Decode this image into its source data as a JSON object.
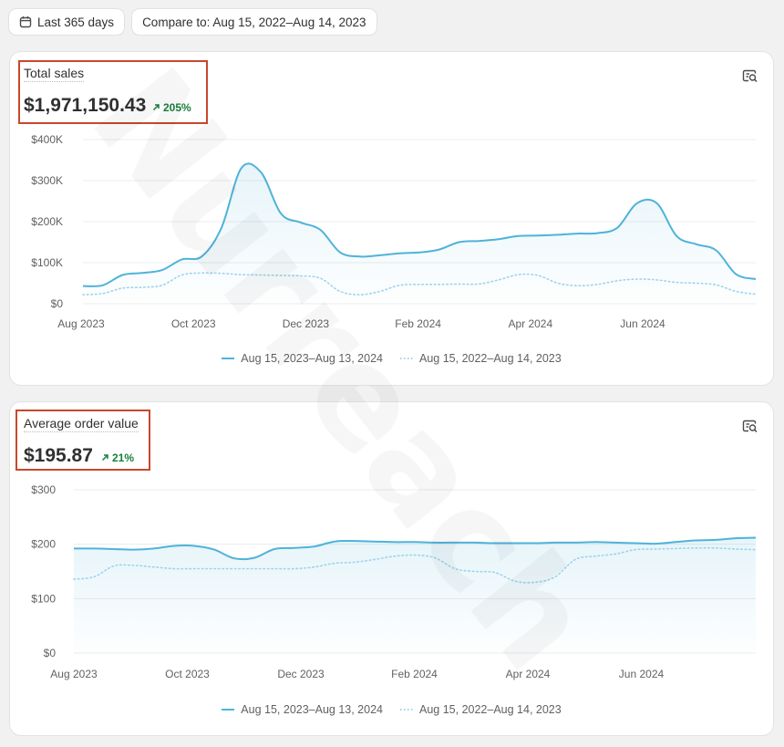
{
  "toolbar": {
    "date_range_label": "Last 365 days",
    "compare_label": "Compare to: Aug 15, 2022–Aug 14, 2023"
  },
  "watermark": "Nurreach",
  "colors": {
    "current": "#4fb3d9",
    "previous": "#9fd3ea",
    "positive": "#1a7f3c",
    "highlight": "#c8472c"
  },
  "chart_data": [
    {
      "type": "line",
      "title": "Total sales",
      "value": "$1,971,150.43",
      "change": "205%",
      "ylim": [
        0,
        400000
      ],
      "yticks": [
        0,
        100000,
        200000,
        300000,
        400000
      ],
      "yticklabels": [
        "$0",
        "$100K",
        "$200K",
        "$300K",
        "$400K"
      ],
      "xticklabels": [
        "Aug 2023",
        "Oct 2023",
        "Dec 2023",
        "Feb 2024",
        "Apr 2024",
        "Jun 2024"
      ],
      "grid": true,
      "legend_position": "bottom-center",
      "series": [
        {
          "name": "Aug 15, 2023–Aug 13, 2024",
          "style": "solid",
          "values": [
            43000,
            45000,
            70000,
            75000,
            82000,
            108000,
            115000,
            185000,
            330000,
            320000,
            220000,
            198000,
            180000,
            125000,
            115000,
            118000,
            123000,
            125000,
            132000,
            150000,
            153000,
            157000,
            165000,
            166000,
            168000,
            171000,
            172000,
            185000,
            245000,
            245000,
            165000,
            145000,
            130000,
            72000,
            60000
          ]
        },
        {
          "name": "Aug 15, 2022–Aug 14, 2023",
          "style": "dotted",
          "values": [
            22000,
            25000,
            38000,
            40000,
            45000,
            70000,
            75000,
            74000,
            71000,
            70000,
            69000,
            68000,
            62000,
            30000,
            22000,
            30000,
            45000,
            47000,
            47000,
            48000,
            48000,
            58000,
            71000,
            69000,
            50000,
            44000,
            47000,
            56000,
            60000,
            58000,
            52000,
            50000,
            46000,
            30000,
            23000
          ]
        }
      ]
    },
    {
      "type": "line",
      "title": "Average order value",
      "value": "$195.87",
      "change": "21%",
      "ylim": [
        0,
        300
      ],
      "yticks": [
        0,
        100,
        200,
        300
      ],
      "yticklabels": [
        "$0",
        "$100",
        "$200",
        "$300"
      ],
      "xticklabels": [
        "Aug 2023",
        "Oct 2023",
        "Dec 2023",
        "Feb 2024",
        "Apr 2024",
        "Jun 2024"
      ],
      "grid": true,
      "legend_position": "bottom-center",
      "series": [
        {
          "name": "Aug 15, 2023–Aug 13, 2024",
          "style": "solid",
          "values": [
            192,
            192,
            191,
            190,
            192,
            197,
            197,
            190,
            174,
            175,
            191,
            193,
            196,
            205,
            206,
            205,
            204,
            204,
            203,
            203,
            203,
            202,
            202,
            202,
            203,
            203,
            204,
            203,
            202,
            201,
            204,
            207,
            208,
            211,
            212
          ]
        },
        {
          "name": "Aug 15, 2022–Aug 14, 2023",
          "style": "dotted",
          "values": [
            136,
            140,
            160,
            161,
            158,
            155,
            155,
            155,
            155,
            155,
            155,
            155,
            158,
            165,
            167,
            172,
            178,
            180,
            175,
            155,
            150,
            148,
            132,
            130,
            140,
            172,
            178,
            182,
            190,
            191,
            192,
            193,
            193,
            191,
            190
          ]
        }
      ]
    }
  ]
}
